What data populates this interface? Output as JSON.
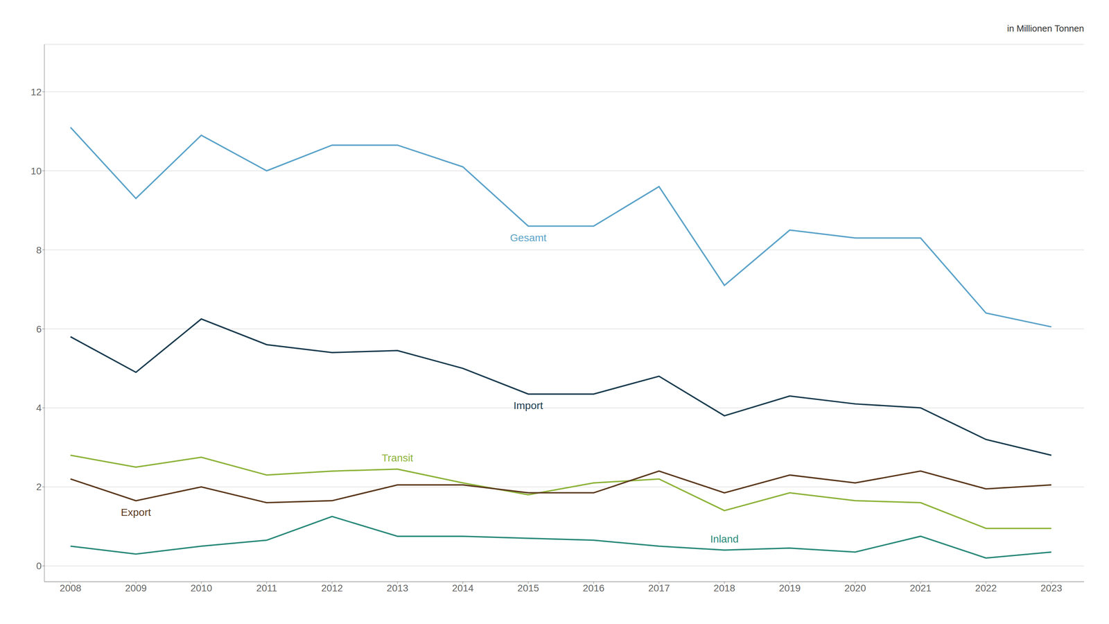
{
  "chart_data": {
    "type": "line",
    "annotation": "in Millionen Tonnen",
    "x": [
      2008,
      2009,
      2010,
      2011,
      2012,
      2013,
      2014,
      2015,
      2016,
      2017,
      2018,
      2019,
      2020,
      2021,
      2022,
      2023
    ],
    "series": [
      {
        "name": "Gesamt",
        "color": "#5ba3c9",
        "values": [
          11.1,
          9.3,
          10.9,
          10.0,
          10.65,
          10.65,
          10.1,
          8.6,
          8.6,
          9.6,
          7.1,
          8.5,
          8.3,
          8.3,
          6.4,
          6.05
        ]
      },
      {
        "name": "Import",
        "color": "#1b3d50",
        "values": [
          5.8,
          4.9,
          6.25,
          5.6,
          5.4,
          5.45,
          5.0,
          4.35,
          4.35,
          4.8,
          3.8,
          4.3,
          4.1,
          4.0,
          3.2,
          2.8
        ]
      },
      {
        "name": "Transit",
        "color": "#8db33a",
        "values": [
          2.8,
          2.5,
          2.75,
          2.3,
          2.4,
          2.45,
          2.1,
          1.8,
          2.1,
          2.2,
          1.4,
          1.85,
          1.65,
          1.6,
          0.95,
          0.95
        ]
      },
      {
        "name": "Export",
        "color": "#5c3a1e",
        "values": [
          2.2,
          1.65,
          2.0,
          1.6,
          1.65,
          2.05,
          2.05,
          1.85,
          1.85,
          2.4,
          1.85,
          2.3,
          2.1,
          2.4,
          1.95,
          2.05
        ]
      },
      {
        "name": "Inland",
        "color": "#2a8a7a",
        "values": [
          0.5,
          0.3,
          0.5,
          0.65,
          1.25,
          0.75,
          0.75,
          0.7,
          0.65,
          0.5,
          0.4,
          0.45,
          0.35,
          0.75,
          0.2,
          0.35
        ]
      }
    ],
    "xlim": [
      2007.6,
      2023.5
    ],
    "xticks": [
      2008,
      2009,
      2010,
      2011,
      2012,
      2013,
      2014,
      2015,
      2016,
      2017,
      2018,
      2019,
      2020,
      2021,
      2022,
      2023
    ],
    "ylim": [
      -0.4,
      13.2
    ],
    "yticks": [
      0,
      2,
      4,
      6,
      8,
      10,
      12
    ],
    "grid": true
  }
}
